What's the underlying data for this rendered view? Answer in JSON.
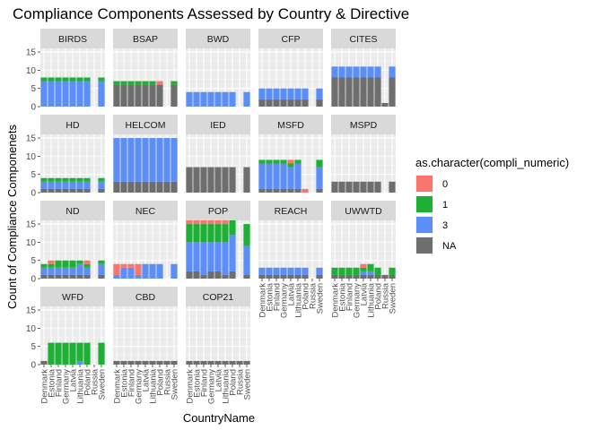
{
  "chart_data": {
    "type": "bar",
    "subtype": "stacked-faceted",
    "title": "Compliance Components Assessed by Country & Directive",
    "xlabel": "CountryName",
    "ylabel": "Count of Compliance Componenets",
    "ylim": [
      0,
      16
    ],
    "yticks": [
      0,
      5,
      10,
      15
    ],
    "grid": true,
    "categories": [
      "Denmark",
      "Estonia",
      "Finland",
      "Germany",
      "Latvia",
      "Lithuania",
      "Poland",
      "Russia",
      "Sweden"
    ],
    "legend": {
      "title": "as.character(compli_numeric)",
      "position": "right",
      "entries": [
        {
          "label": "0",
          "color": "#F8766D"
        },
        {
          "label": "1",
          "color": "#1EAF35"
        },
        {
          "label": "3",
          "color": "#5B8EF7"
        },
        {
          "label": "NA",
          "color": "#6E6E6E"
        }
      ]
    },
    "stack_order": [
      "NA",
      "3",
      "1",
      "0"
    ],
    "panels": [
      {
        "name": "BIRDS",
        "values": {
          "NA": [
            0,
            0,
            0,
            0,
            0,
            0,
            0,
            0,
            0
          ],
          "3": [
            7,
            7,
            7,
            7,
            7,
            7,
            7,
            0,
            7
          ],
          "1": [
            1,
            1,
            1,
            1,
            1,
            1,
            1,
            0,
            1
          ],
          "0": [
            0,
            0,
            0,
            0,
            0,
            0,
            0,
            0,
            0
          ]
        }
      },
      {
        "name": "BSAP",
        "values": {
          "NA": [
            6,
            6,
            6,
            6,
            6,
            6,
            6,
            0,
            6
          ],
          "3": [
            0,
            0,
            0,
            0,
            0,
            0,
            0,
            0,
            0
          ],
          "1": [
            1,
            1,
            1,
            1,
            1,
            1,
            0,
            0,
            1
          ],
          "0": [
            0,
            0,
            0,
            0,
            0,
            0,
            1,
            0,
            0
          ]
        }
      },
      {
        "name": "BWD",
        "values": {
          "NA": [
            0,
            0,
            0,
            0,
            0,
            0,
            0,
            0,
            0
          ],
          "3": [
            4,
            4,
            4,
            4,
            4,
            4,
            4,
            0,
            4
          ],
          "1": [
            0,
            0,
            0,
            0,
            0,
            0,
            0,
            0,
            0
          ],
          "0": [
            0,
            0,
            0,
            0,
            0,
            0,
            0,
            0,
            0
          ]
        }
      },
      {
        "name": "CFP",
        "values": {
          "NA": [
            2,
            2,
            2,
            2,
            2,
            2,
            2,
            0,
            2
          ],
          "3": [
            3,
            3,
            3,
            3,
            3,
            3,
            3,
            0,
            3
          ],
          "1": [
            0,
            0,
            0,
            0,
            0,
            0,
            0,
            0,
            0
          ],
          "0": [
            0,
            0,
            0,
            0,
            0,
            0,
            0,
            0,
            0
          ]
        }
      },
      {
        "name": "CITES",
        "values": {
          "NA": [
            8,
            8,
            8,
            8,
            8,
            8,
            8,
            1,
            8
          ],
          "3": [
            3,
            3,
            3,
            3,
            3,
            3,
            3,
            0,
            3
          ],
          "1": [
            0,
            0,
            0,
            0,
            0,
            0,
            0,
            0,
            0
          ],
          "0": [
            0,
            0,
            0,
            0,
            0,
            0,
            0,
            0,
            0
          ]
        }
      },
      {
        "name": "HD",
        "values": {
          "NA": [
            1,
            1,
            1,
            1,
            1,
            1,
            1,
            0,
            1
          ],
          "3": [
            2,
            2,
            2,
            2,
            2,
            2,
            2,
            0,
            2
          ],
          "1": [
            1,
            1,
            1,
            1,
            1,
            1,
            1,
            0,
            1
          ],
          "0": [
            0,
            0,
            0,
            0,
            0,
            0,
            0,
            0,
            0
          ]
        }
      },
      {
        "name": "HELCOM",
        "values": {
          "NA": [
            3,
            3,
            3,
            3,
            3,
            3,
            3,
            3,
            3
          ],
          "3": [
            12,
            12,
            12,
            12,
            12,
            12,
            12,
            12,
            12
          ],
          "1": [
            0,
            0,
            0,
            0,
            0,
            0,
            0,
            0,
            0
          ],
          "0": [
            0,
            0,
            0,
            0,
            0,
            0,
            0,
            0,
            0
          ]
        }
      },
      {
        "name": "IED",
        "values": {
          "NA": [
            7,
            7,
            7,
            7,
            7,
            7,
            7,
            0,
            7
          ],
          "3": [
            0,
            0,
            0,
            0,
            0,
            0,
            0,
            0,
            0
          ],
          "1": [
            0,
            0,
            0,
            0,
            0,
            0,
            0,
            0,
            0
          ],
          "0": [
            0,
            0,
            0,
            0,
            0,
            0,
            0,
            0,
            0
          ]
        }
      },
      {
        "name": "MSFD",
        "values": {
          "NA": [
            1,
            1,
            1,
            1,
            1,
            1,
            0,
            0,
            1
          ],
          "3": [
            7,
            7,
            7,
            7,
            6,
            7,
            0,
            0,
            6
          ],
          "1": [
            1,
            1,
            1,
            1,
            1,
            1,
            0,
            0,
            2
          ],
          "0": [
            0,
            0,
            0,
            0,
            1,
            0,
            1,
            0,
            0
          ]
        }
      },
      {
        "name": "MSPD",
        "values": {
          "NA": [
            3,
            3,
            3,
            3,
            3,
            3,
            3,
            0,
            3
          ],
          "3": [
            0,
            0,
            0,
            0,
            0,
            0,
            0,
            0,
            0
          ],
          "1": [
            0,
            0,
            0,
            0,
            0,
            0,
            0,
            0,
            0
          ],
          "0": [
            0,
            0,
            0,
            0,
            0,
            0,
            0,
            0,
            0
          ]
        }
      },
      {
        "name": "ND",
        "values": {
          "NA": [
            1,
            1,
            1,
            1,
            1,
            1,
            1,
            0,
            1
          ],
          "3": [
            2,
            2,
            2,
            2,
            2,
            3,
            2,
            0,
            3
          ],
          "1": [
            1,
            1,
            2,
            2,
            2,
            1,
            1,
            0,
            1
          ],
          "0": [
            0,
            1,
            0,
            0,
            0,
            0,
            1,
            0,
            0
          ]
        }
      },
      {
        "name": "NEC",
        "values": {
          "NA": [
            0,
            0,
            0,
            0,
            0,
            0,
            0,
            0,
            0
          ],
          "3": [
            1,
            3,
            3,
            1,
            4,
            4,
            4,
            0,
            4
          ],
          "1": [
            0,
            0,
            0,
            0,
            0,
            0,
            0,
            0,
            0
          ],
          "0": [
            3,
            1,
            1,
            3,
            0,
            0,
            0,
            0,
            0
          ]
        }
      },
      {
        "name": "POP",
        "values": {
          "NA": [
            2,
            2,
            1,
            2,
            2,
            1,
            2,
            0,
            1
          ],
          "3": [
            8,
            8,
            9,
            8,
            8,
            9,
            10,
            0,
            8
          ],
          "1": [
            5,
            5,
            5,
            5,
            5,
            5,
            4,
            0,
            6
          ],
          "0": [
            1,
            1,
            1,
            1,
            1,
            1,
            0,
            0,
            0
          ]
        }
      },
      {
        "name": "REACH",
        "values": {
          "NA": [
            1,
            1,
            1,
            1,
            1,
            1,
            1,
            0,
            1
          ],
          "3": [
            2,
            2,
            2,
            2,
            2,
            2,
            2,
            0,
            2
          ],
          "1": [
            0,
            0,
            0,
            0,
            0,
            0,
            0,
            0,
            0
          ],
          "0": [
            0,
            0,
            0,
            0,
            0,
            0,
            0,
            0,
            0
          ]
        }
      },
      {
        "name": "UWWTD",
        "values": {
          "NA": [
            1,
            1,
            1,
            1,
            1,
            1,
            1,
            1,
            1
          ],
          "3": [
            0,
            0,
            0,
            0,
            1,
            1,
            0,
            0,
            0
          ],
          "1": [
            2,
            2,
            2,
            2,
            1,
            2,
            2,
            0,
            2
          ],
          "0": [
            0,
            0,
            0,
            0,
            1,
            0,
            0,
            0,
            0
          ]
        }
      },
      {
        "name": "WFD",
        "values": {
          "NA": [
            1,
            0,
            0,
            0,
            0,
            0,
            0,
            0,
            0
          ],
          "3": [
            0,
            0,
            0,
            0,
            0,
            1,
            0,
            0,
            0
          ],
          "1": [
            0,
            6,
            6,
            6,
            6,
            5,
            6,
            0,
            6
          ],
          "0": [
            0,
            0,
            0,
            0,
            0,
            0,
            0,
            0,
            0
          ]
        }
      },
      {
        "name": "CBD",
        "values": {
          "NA": [
            1,
            1,
            1,
            1,
            1,
            1,
            1,
            1,
            1
          ],
          "3": [
            0,
            0,
            0,
            0,
            0,
            0,
            0,
            0,
            0
          ],
          "1": [
            0,
            0,
            0,
            0,
            0,
            0,
            0,
            0,
            0
          ],
          "0": [
            0,
            0,
            0,
            0,
            0,
            0,
            0,
            0,
            0
          ]
        }
      },
      {
        "name": "COP21",
        "values": {
          "NA": [
            1,
            1,
            1,
            1,
            1,
            1,
            1,
            1,
            1
          ],
          "3": [
            0,
            0,
            0,
            0,
            0,
            0,
            0,
            0,
            0
          ],
          "1": [
            0,
            0,
            0,
            0,
            0,
            0,
            0,
            0,
            0
          ],
          "0": [
            0,
            0,
            0,
            0,
            0,
            0,
            0,
            0,
            0
          ]
        }
      }
    ]
  }
}
